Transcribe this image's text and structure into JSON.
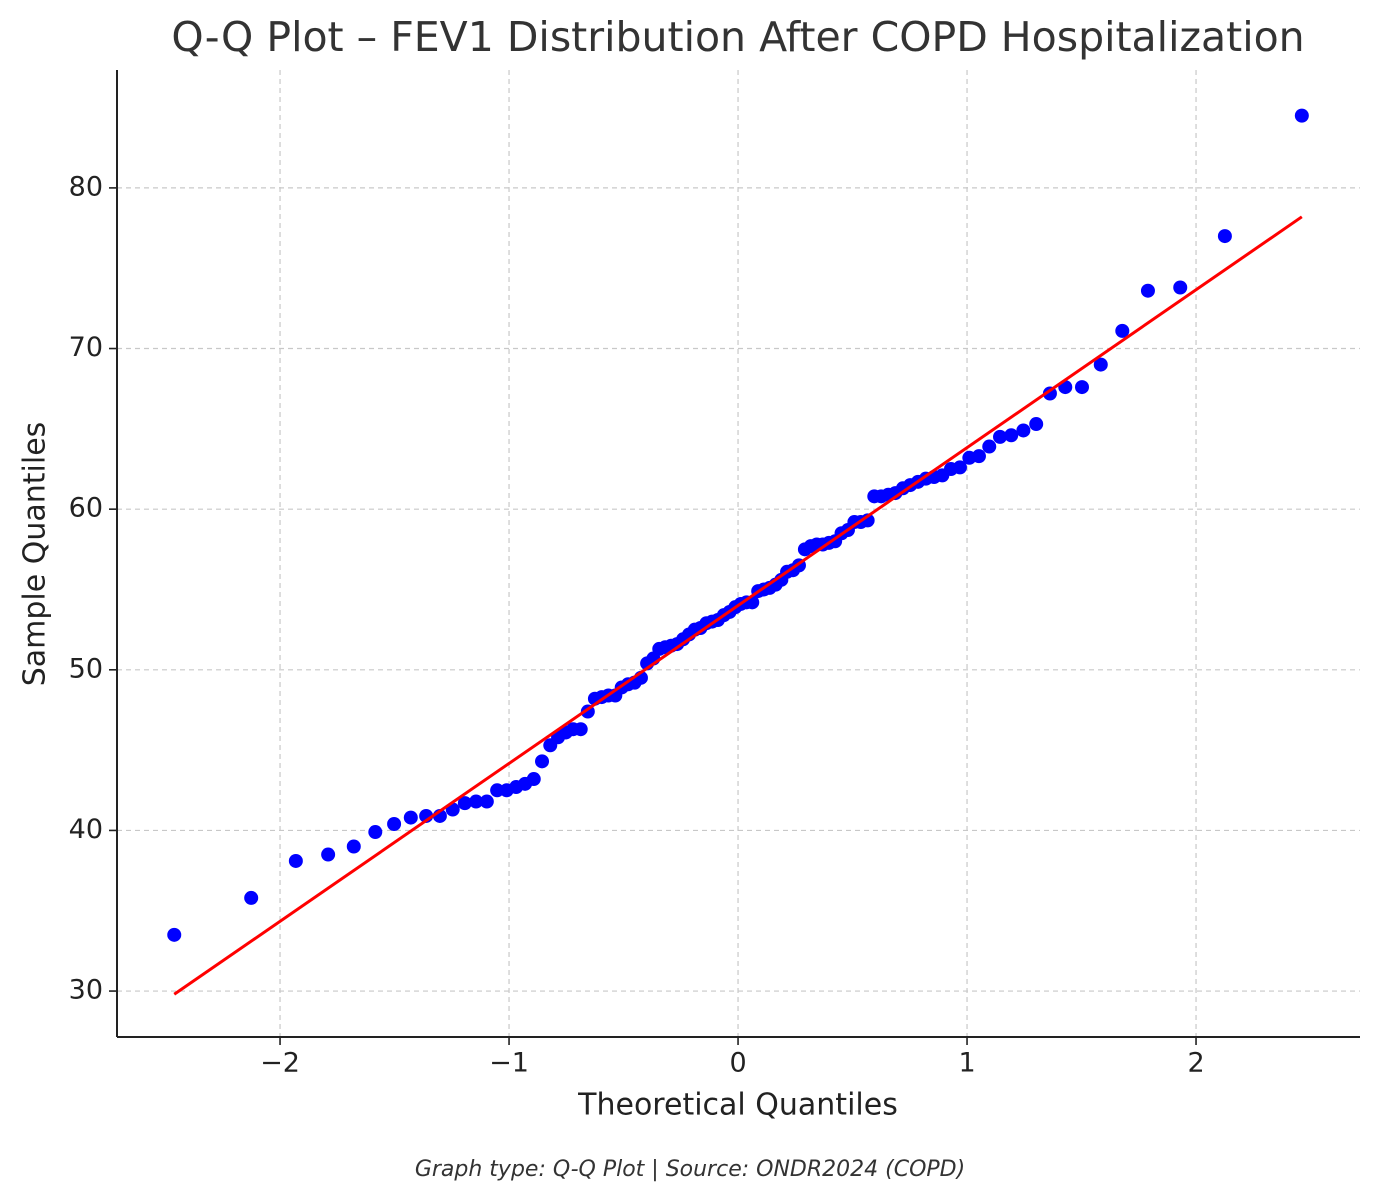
{
  "chart_data": {
    "type": "qq",
    "title": "Q-Q Plot – FEV1 Distribution After COPD Hospitalization",
    "x_label": "Theoretical Quantiles",
    "y_label": "Sample Quantiles",
    "footnote": "Graph type: Q-Q Plot | Source: ONDR2024 (COPD)",
    "xlim": [
      -2.712,
      2.716
    ],
    "ylim": [
      27.14,
      87.34
    ],
    "xticks": [
      {
        "value": -2,
        "label": "−2"
      },
      {
        "value": -1,
        "label": "−1"
      },
      0,
      1,
      2
    ],
    "yticks": [
      30,
      40,
      50,
      60,
      70,
      80
    ],
    "grid": true,
    "points": {
      "color": "#0000ff",
      "x": [
        -2.462,
        -2.126,
        -1.931,
        -1.79,
        -1.678,
        -1.584,
        -1.502,
        -1.429,
        -1.362,
        -1.302,
        -1.246,
        -1.193,
        -1.144,
        -1.097,
        -1.052,
        -1.01,
        -0.969,
        -0.93,
        -0.892,
        -0.856,
        -0.82,
        -0.786,
        -0.752,
        -0.72,
        -0.687,
        -0.656,
        -0.625,
        -0.595,
        -0.566,
        -0.536,
        -0.508,
        -0.48,
        -0.452,
        -0.424,
        -0.397,
        -0.37,
        -0.344,
        -0.318,
        -0.292,
        -0.266,
        -0.24,
        -0.214,
        -0.189,
        -0.164,
        -0.138,
        -0.113,
        -0.088,
        -0.062,
        -0.037,
        -0.012,
        0.012,
        0.037,
        0.062,
        0.088,
        0.113,
        0.138,
        0.164,
        0.189,
        0.214,
        0.24,
        0.266,
        0.292,
        0.318,
        0.344,
        0.37,
        0.397,
        0.424,
        0.452,
        0.48,
        0.508,
        0.536,
        0.566,
        0.595,
        0.625,
        0.656,
        0.687,
        0.72,
        0.752,
        0.786,
        0.82,
        0.856,
        0.892,
        0.93,
        0.969,
        1.01,
        1.052,
        1.097,
        1.144,
        1.193,
        1.246,
        1.302,
        1.362,
        1.429,
        1.502,
        1.584,
        1.678,
        1.79,
        1.931,
        2.126,
        2.462
      ],
      "y": [
        33.5,
        35.8,
        38.1,
        38.5,
        39.0,
        39.9,
        40.4,
        40.8,
        40.9,
        40.9,
        41.3,
        41.7,
        41.8,
        41.8,
        42.5,
        42.5,
        42.7,
        42.9,
        43.2,
        44.3,
        45.3,
        45.8,
        46.1,
        46.3,
        46.3,
        47.4,
        48.2,
        48.3,
        48.4,
        48.4,
        48.9,
        49.1,
        49.2,
        49.5,
        50.4,
        50.7,
        51.3,
        51.4,
        51.5,
        51.6,
        51.9,
        52.2,
        52.5,
        52.6,
        52.9,
        53.0,
        53.1,
        53.4,
        53.6,
        53.9,
        54.1,
        54.2,
        54.2,
        54.9,
        55.0,
        55.1,
        55.3,
        55.6,
        56.1,
        56.2,
        56.5,
        57.5,
        57.7,
        57.8,
        57.8,
        57.9,
        58.0,
        58.5,
        58.7,
        59.2,
        59.2,
        59.3,
        60.8,
        60.8,
        60.9,
        61.0,
        61.3,
        61.5,
        61.7,
        61.9,
        62.0,
        62.1,
        62.5,
        62.6,
        63.2,
        63.3,
        63.9,
        64.5,
        64.6,
        64.9,
        65.3,
        67.2,
        67.6,
        67.6,
        69.0,
        71.1,
        73.6,
        73.8,
        77.0,
        84.5
      ]
    },
    "fit_line": {
      "color": "#ff0000",
      "x": [
        -2.462,
        2.462
      ],
      "y": [
        29.8,
        78.2
      ]
    }
  }
}
